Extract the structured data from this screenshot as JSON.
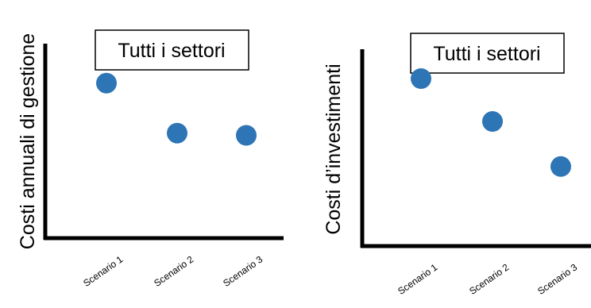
{
  "chart_data": [
    {
      "type": "scatter",
      "title": "Tutti i settori",
      "ylabel": "Costi annuali di gestione",
      "xlabel": "",
      "categories": [
        "Scenario 1",
        "Scenario 2",
        "Scenario 3"
      ],
      "values": [
        72,
        49,
        48
      ],
      "ylim": [
        0,
        100
      ],
      "grid": false,
      "legend": "none",
      "marker_color": "#2E75B6",
      "axis_color": "#000000"
    },
    {
      "type": "scatter",
      "title": "Tutti i settori",
      "ylabel": "Costi d’investimenti",
      "xlabel": "",
      "categories": [
        "Scenario 1",
        "Scenario 2",
        "Scenario 3"
      ],
      "values": [
        75,
        56,
        36
      ],
      "ylim": [
        0,
        100
      ],
      "grid": false,
      "legend": "none",
      "marker_color": "#2E75B6",
      "axis_color": "#000000"
    }
  ]
}
